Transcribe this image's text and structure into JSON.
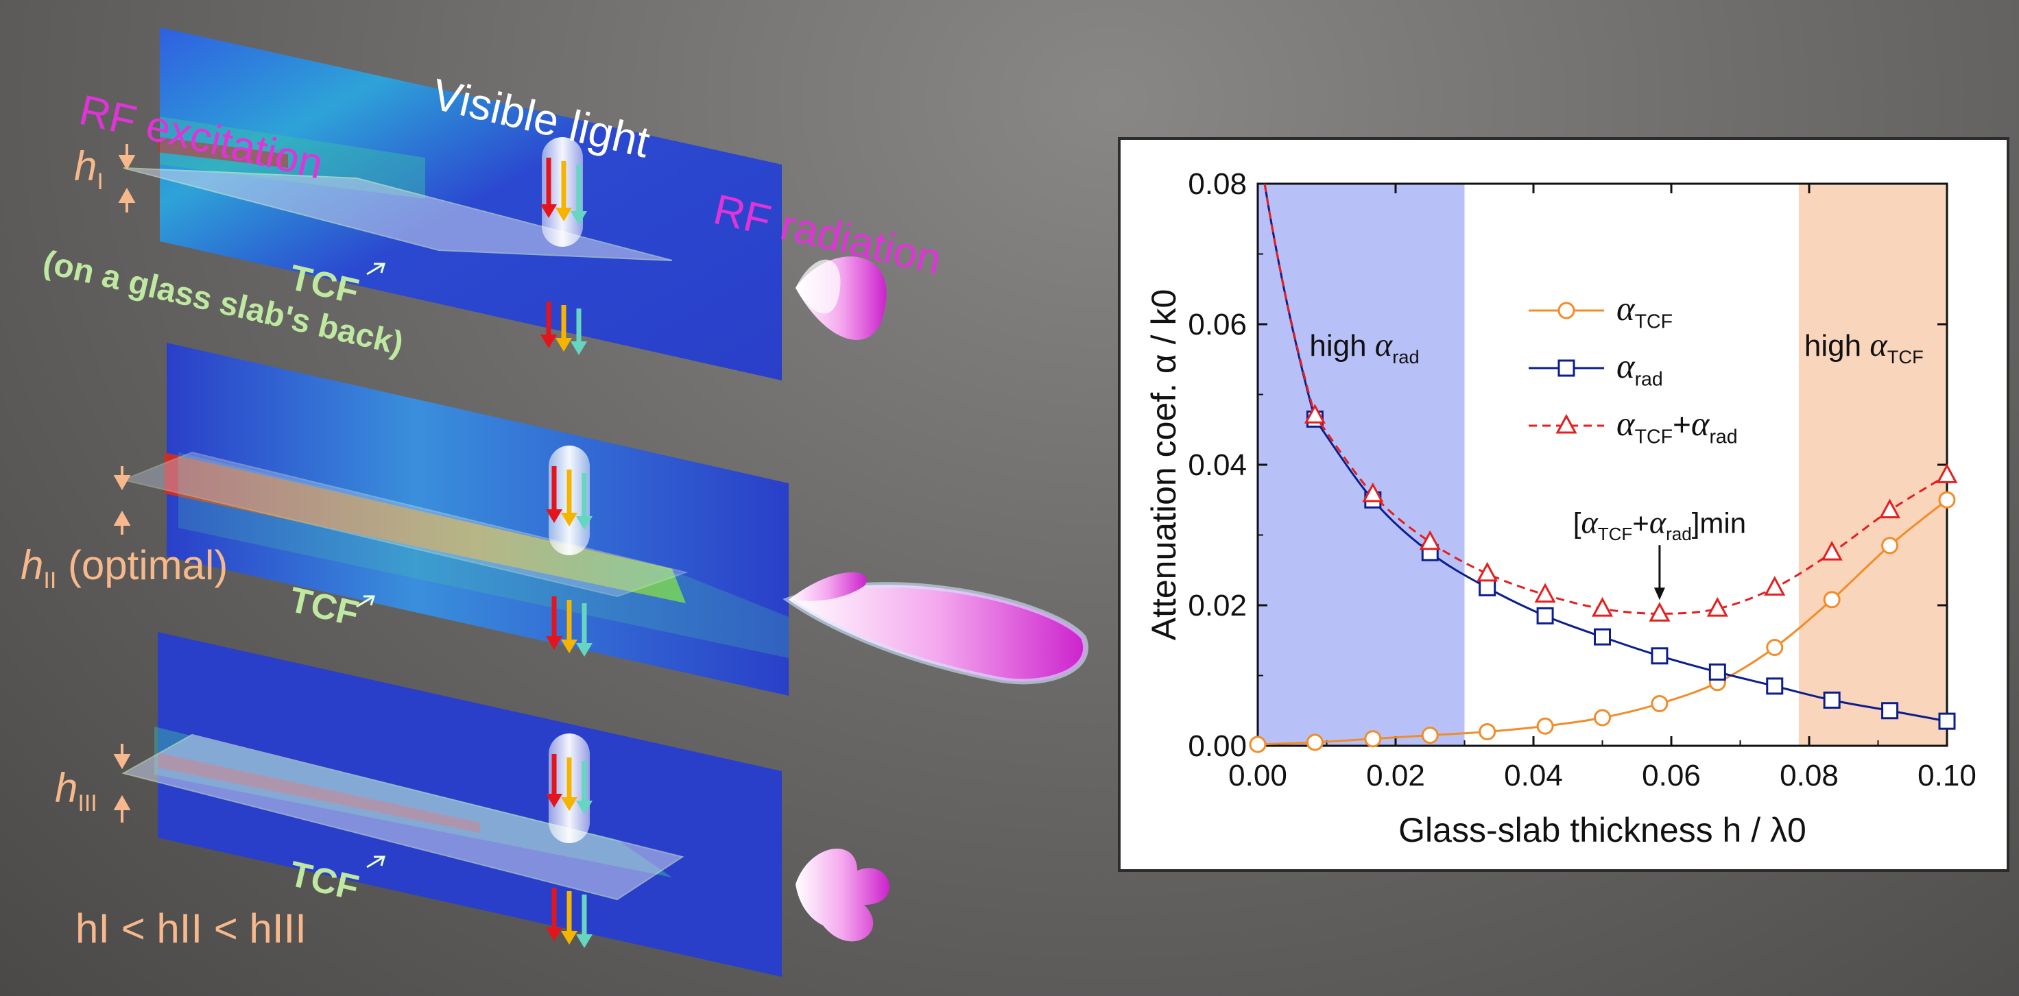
{
  "figure": {
    "labels": {
      "rf_excitation": "RF excitation",
      "rf_radiation": "RF radiation",
      "visible_light": "Visible light",
      "tcf": "TCF",
      "glass_note": "(on a glass slab's back)",
      "h_i": "h",
      "h_i_sub": "I",
      "h_ii": "h",
      "h_ii_sub": "II",
      "h_ii_note": "(optimal)",
      "h_iii": "h",
      "h_iii_sub": "III",
      "relation": "hI < hII < hIII"
    },
    "colors": {
      "background": "#6b6a69",
      "rf_text": "#e033d8",
      "tcf_text": "#bfe8a0",
      "dimension_text": "#f7b98c",
      "field_low": "#2a3fc9",
      "field_high": "#d82a1a",
      "arrow_red": "#e3141c",
      "arrow_yellow": "#f5b400",
      "arrow_teal": "#66d6c2"
    }
  },
  "chart_data": {
    "type": "line",
    "xlabel": "Glass-slab thickness h / λ0",
    "ylabel": "Attenuation coef. α / k0",
    "xlim": [
      0,
      0.1
    ],
    "ylim": [
      0,
      0.08
    ],
    "x_ticks": [
      "0.00",
      "0.02",
      "0.04",
      "0.06",
      "0.08",
      "0.10"
    ],
    "y_ticks": [
      "0.00",
      "0.02",
      "0.04",
      "0.06",
      "0.08"
    ],
    "regions": [
      {
        "label": "high αrad",
        "x_range": [
          0,
          0.03
        ],
        "color": "#b8c1f7"
      },
      {
        "label": "high αTCF",
        "x_range": [
          0.0785,
          0.1
        ],
        "color": "#f8d5bb"
      }
    ],
    "annotation": {
      "text": "[αTCF+αrad]min",
      "x": 0.0583,
      "y": 0.0188
    },
    "legend": "upper-center",
    "series": [
      {
        "name": "αTCF",
        "color": "#f28c28",
        "marker": "circle",
        "dash": "solid",
        "x": [
          0,
          0.0083,
          0.0167,
          0.025,
          0.0333,
          0.0417,
          0.05,
          0.0583,
          0.0667,
          0.075,
          0.0833,
          0.0917,
          0.1
        ],
        "y": [
          0.0002,
          0.0005,
          0.001,
          0.0015,
          0.002,
          0.0028,
          0.004,
          0.006,
          0.009,
          0.014,
          0.0208,
          0.0285,
          0.035
        ]
      },
      {
        "name": "αrad",
        "color": "#0b1e8c",
        "marker": "square",
        "dash": "solid",
        "x": [
          0.0083,
          0.0167,
          0.025,
          0.0333,
          0.0417,
          0.05,
          0.0583,
          0.0667,
          0.075,
          0.0833,
          0.0917,
          0.1
        ],
        "y": [
          0.0465,
          0.035,
          0.0275,
          0.0225,
          0.0185,
          0.0155,
          0.0128,
          0.0105,
          0.0085,
          0.0065,
          0.005,
          0.0035
        ]
      },
      {
        "name": "αTCF+αrad",
        "color": "#e61e1e",
        "marker": "triangle",
        "dash": "dashed",
        "x": [
          0.0083,
          0.0167,
          0.025,
          0.0333,
          0.0417,
          0.05,
          0.0583,
          0.0667,
          0.075,
          0.0833,
          0.0917,
          0.1
        ],
        "y": [
          0.047,
          0.0358,
          0.029,
          0.0245,
          0.0215,
          0.0195,
          0.0188,
          0.0195,
          0.0225,
          0.0275,
          0.0335,
          0.0385
        ]
      }
    ]
  }
}
